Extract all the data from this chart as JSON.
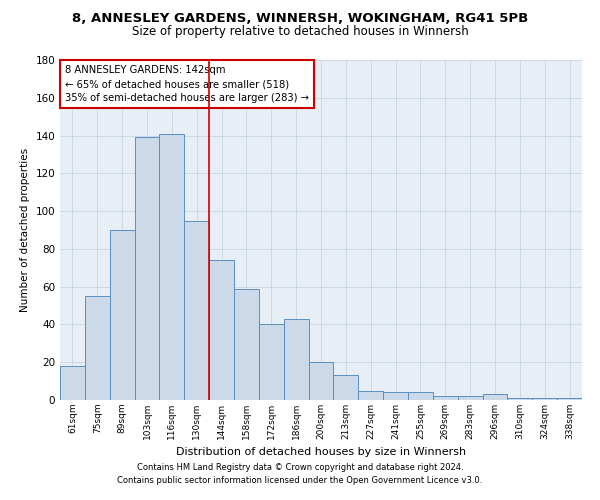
{
  "title": "8, ANNESLEY GARDENS, WINNERSH, WOKINGHAM, RG41 5PB",
  "subtitle": "Size of property relative to detached houses in Winnersh",
  "xlabel": "Distribution of detached houses by size in Winnersh",
  "ylabel": "Number of detached properties",
  "bar_labels": [
    "61sqm",
    "75sqm",
    "89sqm",
    "103sqm",
    "116sqm",
    "130sqm",
    "144sqm",
    "158sqm",
    "172sqm",
    "186sqm",
    "200sqm",
    "213sqm",
    "227sqm",
    "241sqm",
    "255sqm",
    "269sqm",
    "283sqm",
    "296sqm",
    "310sqm",
    "324sqm",
    "338sqm"
  ],
  "bar_values": [
    18,
    55,
    90,
    139,
    141,
    95,
    74,
    59,
    40,
    43,
    20,
    13,
    5,
    4,
    4,
    2,
    2,
    3,
    1,
    1,
    1
  ],
  "bar_color": "#ccd9e8",
  "bar_edge_color": "#5b8fc4",
  "vline_x": 5.5,
  "vline_color": "#cc0000",
  "annotation_text": "8 ANNESLEY GARDENS: 142sqm\n← 65% of detached houses are smaller (518)\n35% of semi-detached houses are larger (283) →",
  "annotation_box_color": "white",
  "annotation_box_edge_color": "#cc0000",
  "ylim": [
    0,
    180
  ],
  "yticks": [
    0,
    20,
    40,
    60,
    80,
    100,
    120,
    140,
    160,
    180
  ],
  "grid_color": "#c8d4e4",
  "background_color": "#e8eef6",
  "footer_line1": "Contains HM Land Registry data © Crown copyright and database right 2024.",
  "footer_line2": "Contains public sector information licensed under the Open Government Licence v3.0.",
  "title_fontsize": 9.5,
  "subtitle_fontsize": 8.5
}
